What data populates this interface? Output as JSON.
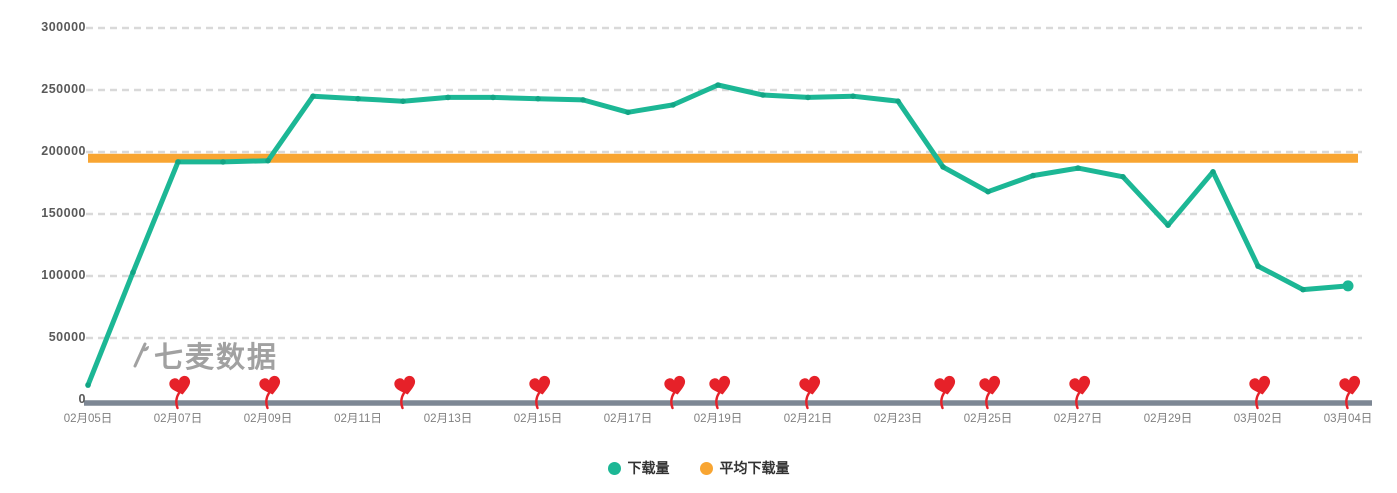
{
  "watermark": {
    "text": "七麦数据"
  },
  "legend": {
    "items": [
      {
        "label": "下载量",
        "color": "#1cb795"
      },
      {
        "label": "平均下载量",
        "color": "#f8a532"
      }
    ]
  },
  "chart_data": {
    "type": "line",
    "title": "",
    "xlabel": "",
    "ylabel": "",
    "grid": true,
    "legend_position": "bottom-center",
    "ylim": [
      0,
      300000
    ],
    "y_ticks": [
      0,
      50000,
      100000,
      150000,
      200000,
      250000,
      300000
    ],
    "y_tick_labels": [
      "0",
      "50000",
      "100000",
      "150000",
      "200000",
      "250000",
      "300000"
    ],
    "x_tick_labels": [
      "02月05日",
      "02月07日",
      "02月09日",
      "02月11日",
      "02月13日",
      "02月15日",
      "02月17日",
      "02月19日",
      "02月21日",
      "02月23日",
      "02月25日",
      "02月27日",
      "02月29日",
      "03月02日",
      "03月04日"
    ],
    "x_ticks_every_n_days": 2,
    "series": [
      {
        "name": "下载量",
        "color": "#1cb795",
        "marker_color": "#12a585",
        "values": [
          12000,
          103000,
          192000,
          192000,
          193000,
          245000,
          243000,
          241000,
          244000,
          244000,
          243000,
          242000,
          232000,
          238000,
          254000,
          246000,
          244000,
          245000,
          241000,
          188000,
          168000,
          181000,
          187000,
          180000,
          141000,
          184000,
          108000,
          89000,
          92000
        ]
      },
      {
        "name": "平均下载量",
        "color": "#f8a532",
        "style": "horizontal-line",
        "value": 195000
      }
    ],
    "event_markers": {
      "icon": "heart",
      "color": "#e62129",
      "day_indices": [
        2,
        4,
        7,
        10,
        13,
        14,
        16,
        19,
        20,
        22,
        26,
        28
      ]
    },
    "axis_line_color": "#7d8794",
    "gridline_color": "#d9d9d9"
  }
}
